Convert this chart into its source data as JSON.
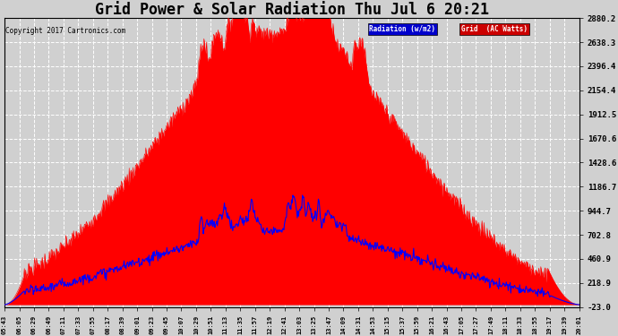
{
  "title": "Grid Power & Solar Radiation Thu Jul 6 20:21",
  "copyright": "Copyright 2017 Cartronics.com",
  "background_color": "#d0d0d0",
  "plot_background": "#d0d0d0",
  "yticks": [
    2880.2,
    2638.3,
    2396.4,
    2154.4,
    1912.5,
    1670.6,
    1428.6,
    1186.7,
    944.7,
    702.8,
    460.9,
    218.9,
    -23.0
  ],
  "ymin": -23.0,
  "ymax": 2880.2,
  "legend_labels": [
    "Radiation (w/m2)",
    "Grid  (AC Watts)"
  ],
  "legend_colors_bg": [
    "#0000cc",
    "#cc0000"
  ],
  "title_fontsize": 12,
  "grid_color": "#ffffff",
  "grid_style": "--",
  "x_tick_labels": [
    "05:43",
    "06:05",
    "06:29",
    "06:49",
    "07:11",
    "07:33",
    "07:55",
    "08:17",
    "08:39",
    "09:01",
    "09:23",
    "09:45",
    "10:07",
    "10:29",
    "10:51",
    "11:13",
    "11:35",
    "11:57",
    "12:19",
    "12:41",
    "13:03",
    "13:25",
    "13:47",
    "14:09",
    "14:31",
    "14:53",
    "15:15",
    "15:37",
    "15:59",
    "16:21",
    "16:43",
    "17:05",
    "17:27",
    "17:49",
    "18:11",
    "18:33",
    "18:55",
    "19:17",
    "19:39",
    "20:01"
  ]
}
